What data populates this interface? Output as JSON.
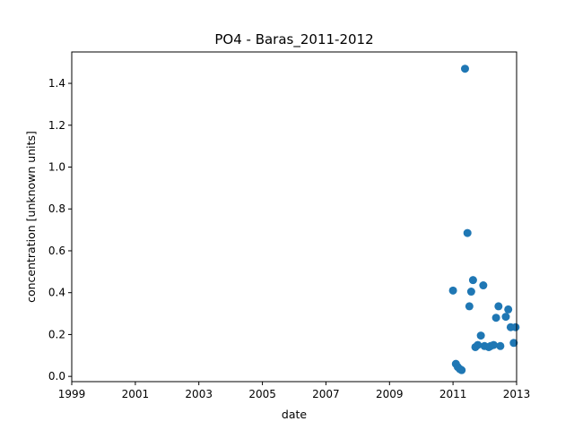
{
  "chart_data": {
    "type": "scatter",
    "title": "PO4 - Baras_2011-2012",
    "xlabel": "date",
    "ylabel": "concentration [unknown units]",
    "xlim": [
      "1999-01-01",
      "2013-01-01"
    ],
    "ylim": [
      -0.025,
      1.55
    ],
    "x_ticks": [
      "1999",
      "2001",
      "2003",
      "2005",
      "2007",
      "2009",
      "2011",
      "2013"
    ],
    "y_ticks": [
      "0.0",
      "0.2",
      "0.4",
      "0.6",
      "0.8",
      "1.0",
      "1.2",
      "1.4"
    ],
    "grid": false,
    "legend": false,
    "color": "#1f77b4",
    "series": [
      {
        "x": [
          "2011-01-01",
          "2011-02-03",
          "2011-02-25",
          "2011-03-20",
          "2011-04-10",
          "2011-05-19",
          "2011-06-16",
          "2011-07-08",
          "2011-07-29",
          "2011-08-19",
          "2011-09-15",
          "2011-10-13",
          "2011-11-17",
          "2011-12-15",
          "2011-12-29",
          "2012-02-16",
          "2012-03-08",
          "2012-04-12",
          "2012-05-10",
          "2012-06-07",
          "2012-06-28",
          "2012-08-30",
          "2012-09-27",
          "2012-10-25",
          "2012-11-29",
          "2012-12-20"
        ],
        "y": [
          0.41,
          0.06,
          0.045,
          0.035,
          0.03,
          1.47,
          0.685,
          0.335,
          0.405,
          0.46,
          0.14,
          0.15,
          0.195,
          0.435,
          0.145,
          0.14,
          0.145,
          0.15,
          0.28,
          0.335,
          0.145,
          0.285,
          0.32,
          0.235,
          0.16,
          0.235
        ]
      }
    ]
  }
}
